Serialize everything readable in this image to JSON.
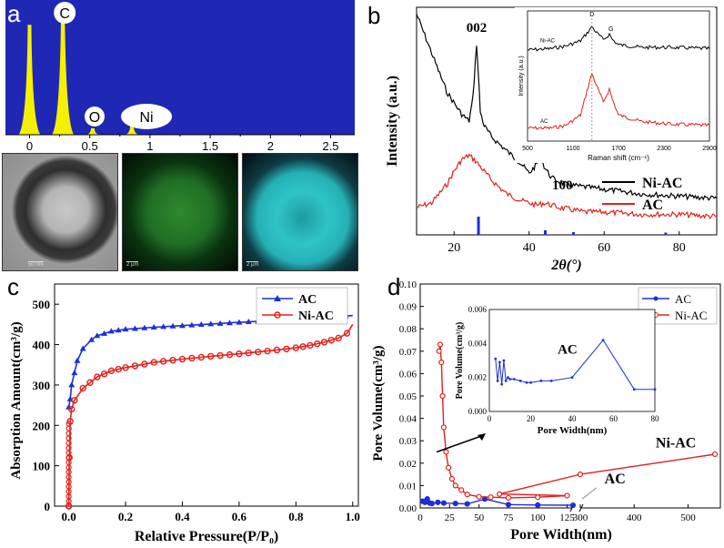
{
  "panels": {
    "a": {
      "letter": "a"
    },
    "b": {
      "letter": "b"
    },
    "c": {
      "letter": "c"
    },
    "d": {
      "letter": "d"
    }
  },
  "colors": {
    "eds_bg": "#1f28b4",
    "eds_peak": "#f5f000",
    "blue": "#1e2fd6",
    "red": "#e3201b",
    "black": "#000000"
  },
  "chart_data": [
    {
      "id": "a",
      "type": "bar",
      "title": "",
      "x_ticks": [
        "0",
        "0.5",
        "1",
        "1.5",
        "2",
        "2.5"
      ],
      "xlim": [
        -0.2,
        2.7
      ],
      "peaks": [
        {
          "label": "",
          "x": 0.0,
          "height": 0.85
        },
        {
          "label": "C",
          "x": 0.277,
          "height": 1.0
        },
        {
          "label": "O",
          "x": 0.525,
          "height": 0.05
        },
        {
          "label": "Ni",
          "x": 0.85,
          "height": 0.07
        }
      ],
      "peak_labels": [
        "C",
        "O",
        "Ni"
      ],
      "scale_bars": [
        "50 nm",
        "2 μm",
        "2 μm"
      ]
    },
    {
      "id": "b",
      "type": "line",
      "xlabel": "2θ(°)",
      "ylabel": "Intensity (a.u.)",
      "x_ticks": [
        "20",
        "40",
        "60",
        "80"
      ],
      "xlim": [
        10,
        90
      ],
      "annotations": [
        "002",
        "100"
      ],
      "legend": [
        "Ni-AC",
        "AC"
      ],
      "series": [
        {
          "name": "Ni-AC",
          "x": [
            10,
            14,
            18,
            22,
            24,
            25,
            26,
            27,
            28,
            30,
            34,
            38,
            40,
            42,
            43,
            44,
            46,
            50,
            60,
            70,
            80,
            90
          ],
          "y": [
            0.97,
            0.8,
            0.63,
            0.53,
            0.5,
            0.6,
            0.84,
            0.54,
            0.48,
            0.43,
            0.37,
            0.31,
            0.27,
            0.31,
            0.35,
            0.3,
            0.25,
            0.22,
            0.2,
            0.18,
            0.17,
            0.16
          ]
        },
        {
          "name": "AC",
          "x": [
            10,
            14,
            18,
            20,
            22,
            24,
            26,
            28,
            30,
            34,
            38,
            42,
            44,
            48,
            55,
            60,
            70,
            80,
            90
          ],
          "y": [
            0.12,
            0.14,
            0.22,
            0.28,
            0.33,
            0.35,
            0.32,
            0.28,
            0.24,
            0.18,
            0.15,
            0.13,
            0.14,
            0.12,
            0.1,
            0.1,
            0.09,
            0.09,
            0.08
          ]
        }
      ],
      "reference_lines": [
        {
          "x": 26.5,
          "h": 0.08
        },
        {
          "x": 44.3,
          "h": 0.02
        },
        {
          "x": 51.8,
          "h": 0.012
        },
        {
          "x": 76.4,
          "h": 0.01
        }
      ],
      "inset": {
        "xlabel": "Raman shift (cm⁻¹)",
        "ylabel": "Intensity (a.u.)",
        "x_ticks": [
          "500",
          "1100",
          "1700",
          "2300",
          "2900"
        ],
        "xlim": [
          500,
          2900
        ],
        "annotations": [
          "D",
          "G"
        ],
        "series_labels": [
          "Ni-AC",
          "AC"
        ],
        "series": [
          {
            "name": "Ni-AC",
            "x": [
              500,
              800,
              1000,
              1200,
              1300,
              1350,
              1400,
              1500,
              1580,
              1620,
              1700,
              2000,
              2400,
              2900
            ],
            "y": [
              0.7,
              0.71,
              0.73,
              0.77,
              0.84,
              0.88,
              0.84,
              0.78,
              0.82,
              0.78,
              0.74,
              0.72,
              0.72,
              0.71
            ]
          },
          {
            "name": "AC",
            "x": [
              500,
              800,
              1000,
              1200,
              1300,
              1350,
              1400,
              1500,
              1580,
              1620,
              1700,
              2000,
              2400,
              2900
            ],
            "y": [
              0.1,
              0.1,
              0.12,
              0.2,
              0.42,
              0.52,
              0.44,
              0.3,
              0.4,
              0.32,
              0.2,
              0.15,
              0.13,
              0.12
            ]
          }
        ]
      }
    },
    {
      "id": "c",
      "type": "line",
      "xlabel": "Relative Pressure(P/P₀)",
      "ylabel": "Absorption Amount(cm³/g)",
      "x_ticks": [
        "0.0",
        "0.2",
        "0.4",
        "0.6",
        "0.8",
        "1.0"
      ],
      "y_ticks": [
        "0",
        "100",
        "200",
        "300",
        "400",
        "500"
      ],
      "xlim": [
        -0.05,
        1.02
      ],
      "ylim": [
        0,
        550
      ],
      "legend": [
        "AC",
        "Ni-AC"
      ],
      "series": [
        {
          "name": "AC",
          "x": [
            0.0,
            0.005,
            0.01,
            0.02,
            0.03,
            0.05,
            0.08,
            0.1,
            0.15,
            0.2,
            0.3,
            0.4,
            0.5,
            0.6,
            0.7,
            0.8,
            0.9,
            0.95,
            1.0
          ],
          "y": [
            245,
            265,
            300,
            330,
            360,
            390,
            412,
            422,
            433,
            438,
            443,
            447,
            451,
            455,
            459,
            463,
            467,
            469,
            472
          ]
        },
        {
          "name": "Ni-AC",
          "x": [
            0.0,
            0.002,
            0.005,
            0.01,
            0.02,
            0.05,
            0.1,
            0.15,
            0.2,
            0.3,
            0.4,
            0.5,
            0.6,
            0.7,
            0.8,
            0.85,
            0.9,
            0.95,
            0.98,
            1.0
          ],
          "y": [
            0,
            120,
            210,
            240,
            262,
            292,
            320,
            335,
            343,
            356,
            364,
            371,
            377,
            384,
            392,
            398,
            406,
            416,
            428,
            450
          ]
        }
      ]
    },
    {
      "id": "d",
      "type": "line",
      "xlabel": "Pore Width(nm)",
      "ylabel": "Pore Volume(cm³/g)",
      "x_ticks": [
        "0",
        "25",
        "50",
        "75",
        "100",
        "125",
        "300",
        "400",
        "500"
      ],
      "y_ticks": [
        "0.00",
        "0.01",
        "0.02",
        "0.03",
        "0.04",
        "0.05",
        "0.06",
        "0.07",
        "0.08",
        "0.09",
        "0.10"
      ],
      "ylim": [
        0,
        0.1
      ],
      "legend": [
        "AC",
        "Ni-AC"
      ],
      "annotations": [
        "Ni-AC",
        "AC"
      ],
      "series": [
        {
          "name": "AC",
          "x": [
            2,
            4,
            6,
            8,
            10,
            15,
            20,
            30,
            40,
            55,
            75,
            100,
            130
          ],
          "y": [
            0.003,
            0.0025,
            0.004,
            0.0022,
            0.002,
            0.0025,
            0.0022,
            0.002,
            0.0018,
            0.004,
            0.0015,
            0.0013,
            0.0012
          ]
        },
        {
          "name": "Ni-AC",
          "x": [
            16,
            17,
            18,
            19,
            20,
            22,
            24,
            27,
            30,
            35,
            40,
            50,
            60,
            75,
            100,
            125,
            150,
            300,
            550
          ],
          "y": [
            0.07,
            0.073,
            0.065,
            0.05,
            0.036,
            0.025,
            0.018,
            0.013,
            0.01,
            0.008,
            0.006,
            0.005,
            0.0048,
            0.0045,
            0.0048,
            0.0055,
            0.0062,
            0.015,
            0.024
          ]
        }
      ],
      "inset": {
        "xlabel": "Pore Width(nm)",
        "ylabel": "Pore Volume(cm³/g)",
        "label": "AC",
        "x_ticks": [
          "0",
          "20",
          "40",
          "60",
          "80"
        ],
        "y_ticks": [
          "0.000",
          "0.002",
          "0.004",
          "0.006"
        ],
        "xlim": [
          0,
          80
        ],
        "ylim": [
          0,
          0.006
        ],
        "series": [
          {
            "name": "AC",
            "x": [
              3,
              4,
              5,
              6,
              7,
              8,
              9,
              10,
              12,
              15,
              18,
              20,
              25,
              30,
              40,
              55,
              70,
              80
            ],
            "y": [
              0.0031,
              0.0018,
              0.0029,
              0.0016,
              0.003,
              0.0018,
              0.002,
              0.0019,
              0.0019,
              0.0018,
              0.0017,
              0.0017,
              0.0018,
              0.0018,
              0.002,
              0.0042,
              0.0013,
              0.0013
            ]
          }
        ]
      }
    }
  ]
}
